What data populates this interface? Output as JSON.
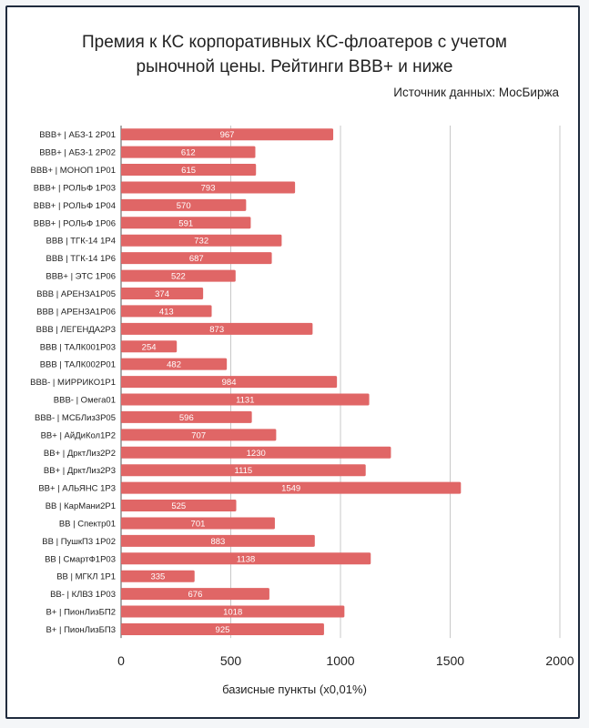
{
  "chart_data": {
    "type": "bar",
    "orientation": "horizontal",
    "title": "Премия к КС корпоративных КС-флоатеров с учетом рыночной цены. Рейтинги BBB+ и ниже",
    "source": "Источник данных: МосБиржа",
    "xlabel": "базисные пункты (х0,01%)",
    "xlim": [
      0,
      2000
    ],
    "xticks": [
      0,
      500,
      1000,
      1500,
      2000
    ],
    "grid": true,
    "bar_color": "#e06666",
    "categories": [
      "BBB+ | АБЗ-1 2Р01",
      "BBB+ | АБЗ-1 2Р02",
      "BBB+ | МОНОП 1Р01",
      "BBB+ | РОЛЬФ 1Р03",
      "BBB+ | РОЛЬФ 1Р04",
      "BBB+ | РОЛЬФ 1Р06",
      "BBB | ТГК-14 1Р4",
      "BBB | ТГК-14 1Р6",
      "BBB+ | ЭТС 1Р06",
      "BBB | АРЕНЗА1Р05",
      "BBB | АРЕНЗА1Р06",
      "BBB | ЛЕГЕНДА2Р3",
      "BBB | ТАЛК001Р03",
      "BBB | ТАЛК002Р01",
      "BBB- | МИРРИКО1Р1",
      "BBB- | Омега01",
      "BBB- | МСБЛиз3Р05",
      "BB+ | АйДиКол1Р2",
      "BB+ | ДрктЛиз2Р2",
      "BB+ | ДрктЛиз2Р3",
      "BB+ | АЛЬЯНС 1Р3",
      "BB | КарМани2Р1",
      "BB | Спектр01",
      "BB | ПушкП3 1Р02",
      "BB | СмартФ1Р03",
      "BB | МГКЛ 1Р1",
      "BB- | КЛВЗ 1Р03",
      "B+ | ПионЛизБП2",
      "B+ | ПионЛизБП3"
    ],
    "values": [
      967,
      612,
      615,
      793,
      570,
      591,
      732,
      687,
      522,
      374,
      413,
      873,
      254,
      482,
      984,
      1131,
      596,
      707,
      1230,
      1115,
      1549,
      525,
      701,
      883,
      1138,
      335,
      676,
      1018,
      925
    ]
  }
}
